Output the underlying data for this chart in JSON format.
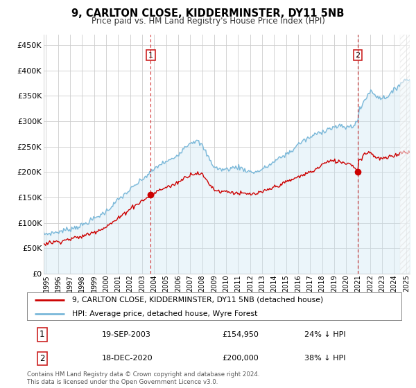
{
  "title": "9, CARLTON CLOSE, KIDDERMINSTER, DY11 5NB",
  "subtitle": "Price paid vs. HM Land Registry's House Price Index (HPI)",
  "ylabel_ticks": [
    "£0",
    "£50K",
    "£100K",
    "£150K",
    "£200K",
    "£250K",
    "£300K",
    "£350K",
    "£400K",
    "£450K"
  ],
  "ytick_values": [
    0,
    50000,
    100000,
    150000,
    200000,
    250000,
    300000,
    350000,
    400000,
    450000
  ],
  "ylim": [
    0,
    470000
  ],
  "xlim_start": 1994.8,
  "xlim_end": 2025.3,
  "hpi_color": "#7ab8d9",
  "hpi_fill_color": "#c8e4f3",
  "sale_color": "#cc0000",
  "marker1_date": 2003.72,
  "marker1_price": 154950,
  "marker2_date": 2020.96,
  "marker2_price": 200000,
  "legend_line1": "9, CARLTON CLOSE, KIDDERMINSTER, DY11 5NB (detached house)",
  "legend_line2": "HPI: Average price, detached house, Wyre Forest",
  "footer": "Contains HM Land Registry data © Crown copyright and database right 2024.\nThis data is licensed under the Open Government Licence v3.0.",
  "background_color": "#ffffff",
  "grid_color": "#cccccc",
  "hpi_anchors_t": [
    1994.8,
    1995.0,
    1996.0,
    1997.0,
    1998.0,
    1999.0,
    2000.0,
    2001.0,
    2002.0,
    2003.0,
    2003.5,
    2004.0,
    2004.5,
    2005.0,
    2005.5,
    2006.0,
    2006.5,
    2007.0,
    2007.5,
    2008.0,
    2008.5,
    2009.0,
    2009.5,
    2010.0,
    2010.5,
    2011.0,
    2011.5,
    2012.0,
    2012.5,
    2013.0,
    2013.5,
    2014.0,
    2014.5,
    2015.0,
    2015.5,
    2016.0,
    2016.5,
    2017.0,
    2017.5,
    2018.0,
    2018.5,
    2019.0,
    2019.5,
    2020.0,
    2020.5,
    2020.96,
    2021.0,
    2021.5,
    2022.0,
    2022.5,
    2023.0,
    2023.5,
    2024.0,
    2024.5,
    2025.0,
    2025.3
  ],
  "hpi_anchors_v": [
    78000,
    78000,
    82000,
    88000,
    95000,
    108000,
    122000,
    145000,
    165000,
    185000,
    195000,
    205000,
    215000,
    220000,
    225000,
    235000,
    248000,
    258000,
    262000,
    252000,
    230000,
    210000,
    205000,
    205000,
    208000,
    210000,
    205000,
    200000,
    200000,
    205000,
    212000,
    220000,
    228000,
    235000,
    242000,
    255000,
    262000,
    268000,
    275000,
    280000,
    285000,
    288000,
    290000,
    288000,
    290000,
    300000,
    315000,
    340000,
    360000,
    350000,
    345000,
    350000,
    360000,
    375000,
    382000,
    382000
  ],
  "sale_anchors_t": [
    1994.8,
    1995.0,
    1996.0,
    1997.0,
    1998.0,
    1999.0,
    2000.0,
    2001.0,
    2002.0,
    2003.0,
    2003.5,
    2003.72,
    2004.0,
    2004.5,
    2005.0,
    2005.5,
    2006.0,
    2006.5,
    2007.0,
    2007.5,
    2008.0,
    2008.5,
    2009.0,
    2009.5,
    2010.0,
    2010.5,
    2011.0,
    2011.5,
    2012.0,
    2012.5,
    2013.0,
    2013.5,
    2014.0,
    2014.5,
    2015.0,
    2015.5,
    2016.0,
    2016.5,
    2017.0,
    2017.5,
    2018.0,
    2018.5,
    2019.0,
    2019.5,
    2020.0,
    2020.5,
    2020.96,
    2021.0,
    2021.5,
    2022.0,
    2022.5,
    2023.0,
    2023.5,
    2024.0,
    2024.5,
    2025.0,
    2025.3
  ],
  "sale_anchors_v": [
    58000,
    60000,
    63000,
    68000,
    73000,
    82000,
    92000,
    108000,
    128000,
    143000,
    150000,
    154950,
    158000,
    165000,
    170000,
    173000,
    180000,
    188000,
    195000,
    198000,
    195000,
    180000,
    165000,
    162000,
    162000,
    160000,
    158000,
    157000,
    156000,
    157000,
    160000,
    165000,
    170000,
    175000,
    180000,
    185000,
    190000,
    195000,
    200000,
    205000,
    215000,
    220000,
    222000,
    220000,
    218000,
    215000,
    200000,
    220000,
    235000,
    240000,
    228000,
    226000,
    228000,
    232000,
    238000,
    240000,
    240000
  ]
}
